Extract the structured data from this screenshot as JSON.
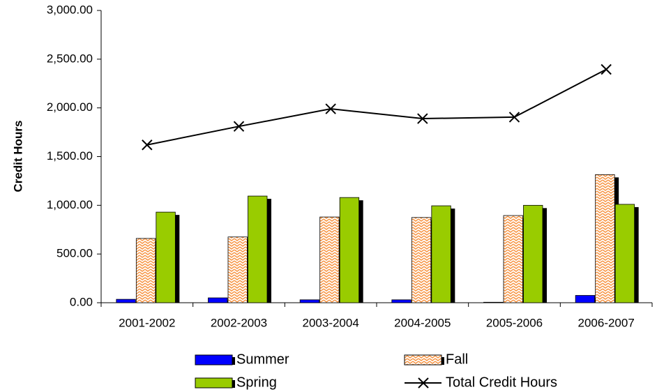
{
  "chart_data": {
    "type": "bar",
    "y_label": "Credit Hours",
    "categories": [
      "2001-2002",
      "2002-2003",
      "2003-2004",
      "2004-2005",
      "2005-2006",
      "2006-2007"
    ],
    "series": [
      {
        "name": "Summer",
        "color": "#0000ff",
        "values": [
          35,
          50,
          30,
          30,
          5,
          75
        ]
      },
      {
        "name": "Fall",
        "color": "#f79646",
        "values": [
          660,
          675,
          880,
          875,
          895,
          1315
        ]
      },
      {
        "name": "Spring",
        "color": "#99cc00",
        "values": [
          930,
          1095,
          1080,
          995,
          1000,
          1010
        ]
      },
      {
        "name": "Total Credit Hours",
        "type": "line",
        "color": "#000000",
        "values": [
          1620,
          1810,
          1990,
          1890,
          1905,
          2395
        ]
      }
    ],
    "ylim": [
      0,
      3000
    ],
    "yticks": [
      {
        "value": 0,
        "label": "0.00"
      },
      {
        "value": 500,
        "label": "500.00"
      },
      {
        "value": 1000,
        "label": "1,000.00"
      },
      {
        "value": 1500,
        "label": "1,500.00"
      },
      {
        "value": 2000,
        "label": "2,000.00"
      },
      {
        "value": 2500,
        "label": "2,500.00"
      },
      {
        "value": 3000,
        "label": "3,000.00"
      }
    ],
    "grid": false,
    "legend": "bottom"
  }
}
